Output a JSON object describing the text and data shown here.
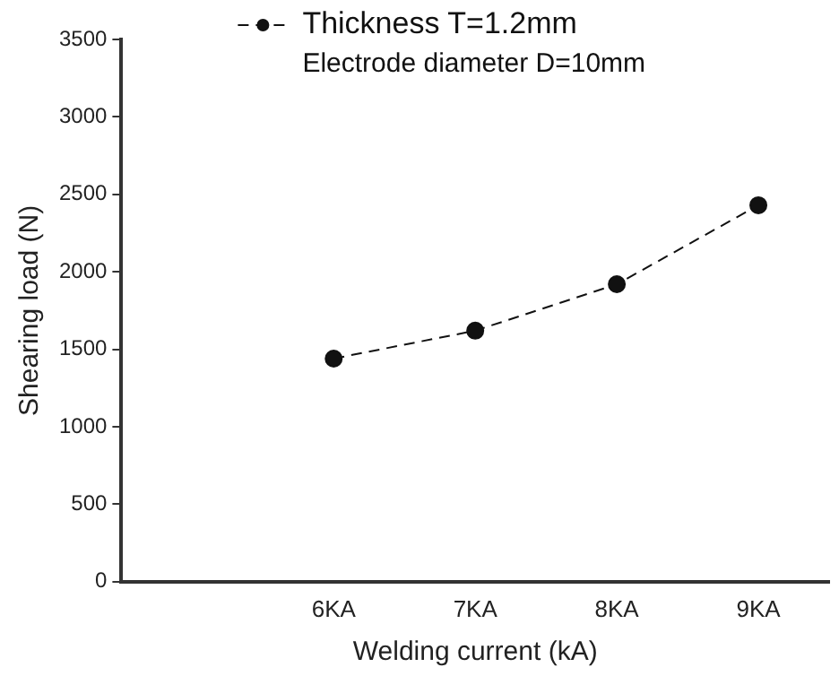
{
  "chart_data": {
    "type": "line",
    "xlabel": "Welding current (kA)",
    "ylabel": "Shearing load (N)",
    "categories": [
      null,
      "6KA",
      "7KA",
      "8KA",
      "9KA"
    ],
    "series": [
      {
        "name": "Thickness T=1.2mm",
        "color": "#111111",
        "values": [
          null,
          1440,
          1620,
          1920,
          2430
        ]
      }
    ],
    "annotations": [
      "Electrode diameter D=10mm"
    ],
    "ylim": [
      0,
      3500
    ],
    "yticks": [
      0,
      500,
      1000,
      1500,
      2000,
      2500,
      3000,
      3500
    ],
    "grid": false,
    "legend": "top",
    "marker": "circle",
    "line_style": "dashed"
  }
}
